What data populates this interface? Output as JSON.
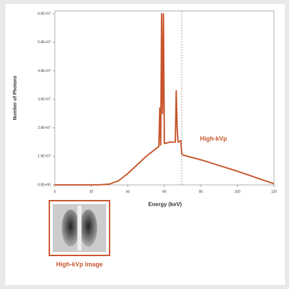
{
  "chart_data": {
    "type": "line",
    "xlabel": "Energy (keV)",
    "ylabel": "Number of Photons",
    "annotation": "High-kVp",
    "image_caption": "High-kVp Image",
    "x": [
      0,
      10,
      20,
      25,
      30,
      35,
      40,
      45,
      50,
      55,
      57,
      57.5,
      58,
      58.5,
      59,
      59.5,
      60,
      63,
      66,
      66.5,
      67,
      67.5,
      69,
      69.5,
      70,
      80,
      90,
      100,
      110,
      120
    ],
    "series": [
      {
        "name": "High-kVp",
        "color": "#c8552c",
        "values": [
          0,
          0,
          0,
          50000,
          300000,
          1500000,
          4000000,
          7000000,
          10000000,
          12500000,
          13500000,
          27000000,
          14000000,
          60000000,
          25000000,
          60000000,
          14500000,
          15000000,
          15000000,
          33000000,
          20000000,
          15000000,
          15500000,
          11000000,
          10500000,
          8800000,
          6800000,
          4800000,
          2600000,
          400000
        ]
      }
    ],
    "vline_x": 69.5,
    "xlim": [
      0,
      120
    ],
    "xticks": [
      0,
      20,
      40,
      60,
      80,
      100,
      120
    ],
    "ylim": [
      0,
      61000000
    ],
    "yticks": [
      {
        "value": 0,
        "label": "0.0E+00"
      },
      {
        "value": 10000000,
        "label": "1.0E+07"
      },
      {
        "value": 20000000,
        "label": "2.0E+07"
      },
      {
        "value": 30000000,
        "label": "3.0E+07"
      },
      {
        "value": 40000000,
        "label": "4.0E+07"
      },
      {
        "value": 50000000,
        "label": "5.0E+07"
      },
      {
        "value": 60000000,
        "label": "6.0E+07"
      }
    ]
  }
}
